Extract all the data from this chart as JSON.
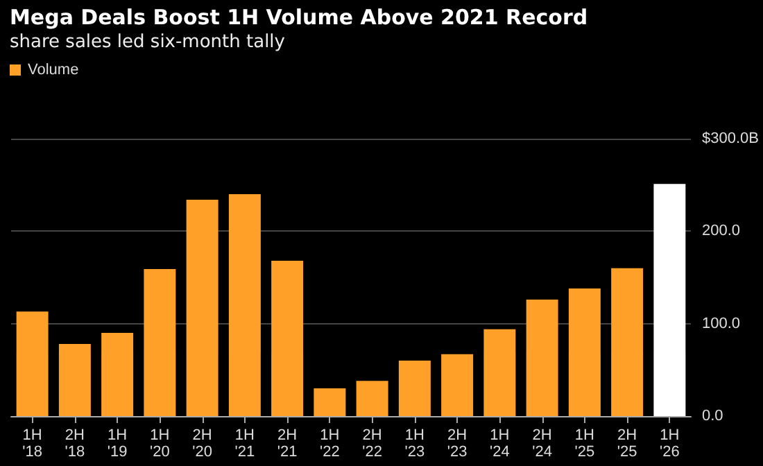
{
  "chart_data": {
    "type": "bar",
    "title": "Mega Deals Boost 1H Volume Above 2021 Record",
    "subtitle": "share sales led six-month tally",
    "categories": [
      "1H\n'18",
      "2H\n'18",
      "1H\n'19",
      "1H\n'20",
      "2H\n'20",
      "1H\n'21",
      "2H\n'21",
      "1H\n'22",
      "2H\n'22",
      "1H\n'23",
      "2H\n'23",
      "1H\n'24",
      "2H\n'24",
      "1H\n'25",
      "2H\n'25",
      "1H\n'26"
    ],
    "series": [
      {
        "name": "Volume",
        "color": "#ffa028",
        "values": [
          113,
          78,
          90,
          159,
          234,
          240,
          168,
          30,
          38,
          60,
          67,
          94,
          126,
          138,
          160,
          251
        ],
        "colors": [
          "#ffa028",
          "#ffa028",
          "#ffa028",
          "#ffa028",
          "#ffa028",
          "#ffa028",
          "#ffa028",
          "#ffa028",
          "#ffa028",
          "#ffa028",
          "#ffa028",
          "#ffa028",
          "#ffa028",
          "#ffa028",
          "#ffa028",
          "#ffffff"
        ]
      }
    ],
    "ylim": [
      0,
      300
    ],
    "yticks": [
      {
        "value": 0,
        "label": "0.0"
      },
      {
        "value": 100,
        "label": "100.0"
      },
      {
        "value": 200,
        "label": "200.0"
      },
      {
        "value": 300,
        "label": "$300.0B"
      }
    ],
    "grid": "y",
    "legend": "top left"
  }
}
